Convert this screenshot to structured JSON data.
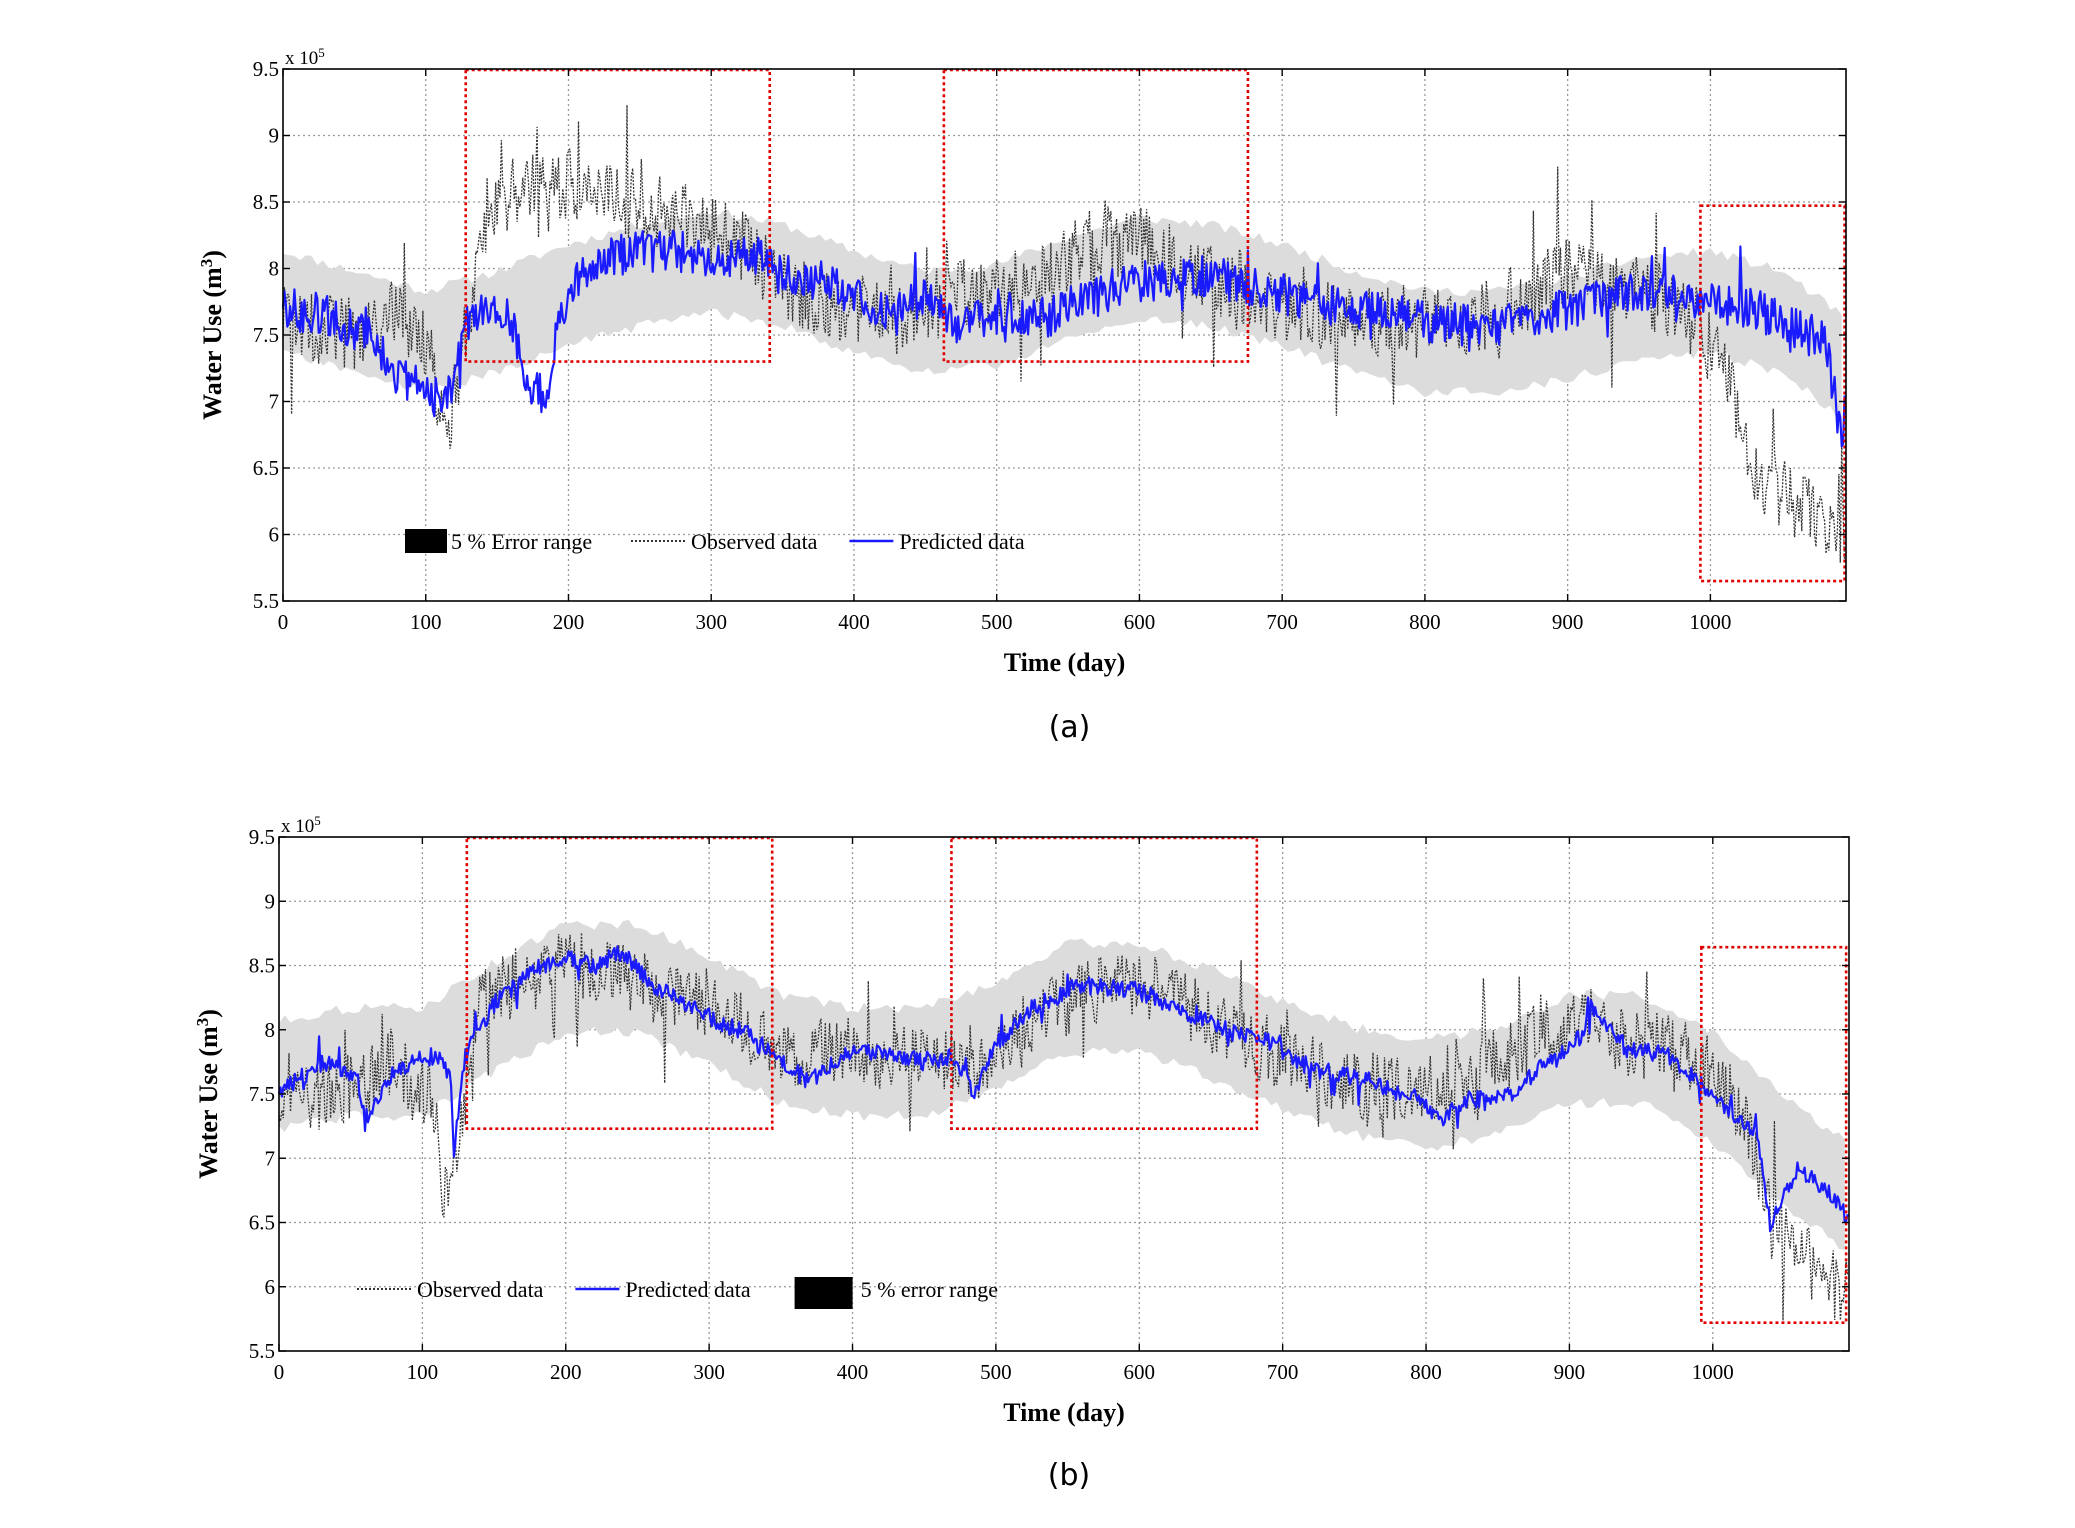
{
  "chart_data": [
    {
      "type": "line",
      "panel_label": "(a)",
      "xlabel": "Time (day)",
      "ylabel_main": "Water Use (m",
      "ylabel_sup": "3",
      "ylabel_close": ")",
      "y_multiplier": "x 10",
      "y_multiplier_exp": "5",
      "xlim": [
        0,
        1095
      ],
      "ylim": [
        5.5,
        9.5
      ],
      "xticks": [
        0,
        100,
        200,
        300,
        400,
        500,
        600,
        700,
        800,
        900,
        1000
      ],
      "yticks": [
        5.5,
        6,
        6.5,
        7,
        7.5,
        8,
        8.5,
        9,
        9.5
      ],
      "grid": true,
      "legend_items": [
        "5 % Error range",
        "Observed data",
        "Predicted data"
      ],
      "legend_order": [
        "band",
        "observed",
        "predicted"
      ],
      "band_color": "#dcdcdc",
      "observed_color": "#333333",
      "predicted_color": "#1a1aff",
      "highlight_color": "#e00000",
      "highlight_boxes": [
        {
          "x0": 128,
          "x1": 341,
          "y0": 7.3,
          "y1": 9.5
        },
        {
          "x0": 463,
          "x1": 676,
          "y0": 7.3,
          "y1": 9.5
        },
        {
          "x0": 993,
          "x1": 1094,
          "y0": 5.65,
          "y1": 8.48
        }
      ],
      "predicted_anchors": [
        [
          0,
          7.7
        ],
        [
          30,
          7.65
        ],
        [
          60,
          7.5
        ],
        [
          80,
          7.2
        ],
        [
          100,
          7.1
        ],
        [
          115,
          7.0
        ],
        [
          125,
          7.5
        ],
        [
          140,
          7.7
        ],
        [
          160,
          7.6
        ],
        [
          170,
          7.1
        ],
        [
          185,
          7.05
        ],
        [
          195,
          7.7
        ],
        [
          210,
          8.0
        ],
        [
          230,
          8.1
        ],
        [
          260,
          8.15
        ],
        [
          300,
          8.1
        ],
        [
          330,
          8.1
        ],
        [
          350,
          7.95
        ],
        [
          380,
          7.9
        ],
        [
          400,
          7.8
        ],
        [
          430,
          7.65
        ],
        [
          450,
          7.8
        ],
        [
          470,
          7.6
        ],
        [
          500,
          7.6
        ],
        [
          540,
          7.65
        ],
        [
          570,
          7.8
        ],
        [
          600,
          7.9
        ],
        [
          640,
          7.95
        ],
        [
          670,
          7.9
        ],
        [
          700,
          7.8
        ],
        [
          750,
          7.7
        ],
        [
          800,
          7.6
        ],
        [
          850,
          7.55
        ],
        [
          900,
          7.7
        ],
        [
          950,
          7.85
        ],
        [
          1000,
          7.75
        ],
        [
          1030,
          7.7
        ],
        [
          1060,
          7.55
        ],
        [
          1080,
          7.45
        ],
        [
          1094,
          6.7
        ]
      ],
      "observed_anchors": [
        [
          0,
          7.6
        ],
        [
          30,
          7.55
        ],
        [
          60,
          7.5
        ],
        [
          80,
          7.7
        ],
        [
          100,
          7.4
        ],
        [
          115,
          6.8
        ],
        [
          125,
          7.3
        ],
        [
          140,
          8.3
        ],
        [
          160,
          8.6
        ],
        [
          185,
          8.6
        ],
        [
          210,
          8.65
        ],
        [
          240,
          8.5
        ],
        [
          270,
          8.4
        ],
        [
          300,
          8.3
        ],
        [
          330,
          8.1
        ],
        [
          360,
          7.8
        ],
        [
          400,
          7.7
        ],
        [
          440,
          7.6
        ],
        [
          470,
          7.85
        ],
        [
          500,
          7.8
        ],
        [
          540,
          8.05
        ],
        [
          570,
          8.2
        ],
        [
          600,
          8.2
        ],
        [
          640,
          8.0
        ],
        [
          670,
          7.8
        ],
        [
          700,
          7.7
        ],
        [
          750,
          7.6
        ],
        [
          800,
          7.6
        ],
        [
          850,
          7.65
        ],
        [
          900,
          8.0
        ],
        [
          930,
          7.9
        ],
        [
          960,
          7.8
        ],
        [
          990,
          7.6
        ],
        [
          1010,
          7.3
        ],
        [
          1030,
          6.5
        ],
        [
          1050,
          6.3
        ],
        [
          1070,
          6.15
        ],
        [
          1094,
          5.9
        ]
      ],
      "band_center_anchors": [
        [
          0,
          7.75
        ],
        [
          50,
          7.6
        ],
        [
          100,
          7.45
        ],
        [
          150,
          7.6
        ],
        [
          200,
          7.8
        ],
        [
          250,
          7.95
        ],
        [
          300,
          8.05
        ],
        [
          350,
          7.95
        ],
        [
          400,
          7.75
        ],
        [
          450,
          7.6
        ],
        [
          500,
          7.65
        ],
        [
          550,
          7.85
        ],
        [
          600,
          8.0
        ],
        [
          650,
          7.95
        ],
        [
          700,
          7.8
        ],
        [
          750,
          7.6
        ],
        [
          800,
          7.45
        ],
        [
          850,
          7.45
        ],
        [
          900,
          7.55
        ],
        [
          950,
          7.7
        ],
        [
          1000,
          7.75
        ],
        [
          1050,
          7.6
        ],
        [
          1094,
          7.25
        ]
      ],
      "band_halfwidth": 0.38
    },
    {
      "type": "line",
      "panel_label": "(b)",
      "xlabel": "Time (day)",
      "ylabel_main": "Water Use (m",
      "ylabel_sup": "3",
      "ylabel_close": ")",
      "y_multiplier": "x 10",
      "y_multiplier_exp": "5",
      "xlim": [
        0,
        1095
      ],
      "ylim": [
        5.5,
        9.5
      ],
      "xticks": [
        0,
        100,
        200,
        300,
        400,
        500,
        600,
        700,
        800,
        900,
        1000
      ],
      "yticks": [
        5.5,
        6,
        6.5,
        7,
        7.5,
        8,
        8.5,
        9,
        9.5
      ],
      "grid": true,
      "legend_items": [
        "Observed data",
        "Predicted data",
        "5 % error range"
      ],
      "legend_order": [
        "observed",
        "predicted",
        "band"
      ],
      "band_color": "#dcdcdc",
      "observed_color": "#333333",
      "predicted_color": "#1a1aff",
      "highlight_color": "#e00000",
      "highlight_boxes": [
        {
          "x0": 131,
          "x1": 344,
          "y0": 7.23,
          "y1": 9.5
        },
        {
          "x0": 469,
          "x1": 682,
          "y0": 7.23,
          "y1": 9.5
        },
        {
          "x0": 992,
          "x1": 1093,
          "y0": 5.72,
          "y1": 8.65
        }
      ],
      "predicted_anchors": [
        [
          0,
          7.5
        ],
        [
          30,
          7.75
        ],
        [
          55,
          7.6
        ],
        [
          60,
          7.3
        ],
        [
          80,
          7.7
        ],
        [
          110,
          7.8
        ],
        [
          120,
          7.6
        ],
        [
          122,
          7.05
        ],
        [
          130,
          7.8
        ],
        [
          150,
          8.2
        ],
        [
          180,
          8.5
        ],
        [
          200,
          8.55
        ],
        [
          220,
          8.5
        ],
        [
          240,
          8.6
        ],
        [
          260,
          8.35
        ],
        [
          300,
          8.1
        ],
        [
          330,
          7.95
        ],
        [
          350,
          7.75
        ],
        [
          370,
          7.6
        ],
        [
          400,
          7.85
        ],
        [
          430,
          7.8
        ],
        [
          450,
          7.75
        ],
        [
          470,
          7.8
        ],
        [
          485,
          7.5
        ],
        [
          500,
          7.9
        ],
        [
          530,
          8.2
        ],
        [
          560,
          8.35
        ],
        [
          600,
          8.3
        ],
        [
          630,
          8.15
        ],
        [
          660,
          8.0
        ],
        [
          690,
          7.9
        ],
        [
          720,
          7.7
        ],
        [
          760,
          7.6
        ],
        [
          790,
          7.5
        ],
        [
          810,
          7.3
        ],
        [
          830,
          7.45
        ],
        [
          860,
          7.5
        ],
        [
          890,
          7.8
        ],
        [
          910,
          7.95
        ],
        [
          915,
          8.2
        ],
        [
          940,
          7.85
        ],
        [
          970,
          7.8
        ],
        [
          1000,
          7.5
        ],
        [
          1030,
          7.2
        ],
        [
          1040,
          6.5
        ],
        [
          1060,
          6.9
        ],
        [
          1080,
          6.75
        ],
        [
          1094,
          6.55
        ]
      ],
      "observed_anchors": [
        [
          0,
          7.45
        ],
        [
          30,
          7.5
        ],
        [
          60,
          7.6
        ],
        [
          80,
          7.75
        ],
        [
          110,
          7.4
        ],
        [
          115,
          6.7
        ],
        [
          125,
          7.2
        ],
        [
          140,
          8.2
        ],
        [
          170,
          8.4
        ],
        [
          200,
          8.5
        ],
        [
          230,
          8.45
        ],
        [
          260,
          8.3
        ],
        [
          300,
          8.2
        ],
        [
          340,
          7.9
        ],
        [
          370,
          7.8
        ],
        [
          400,
          7.9
        ],
        [
          430,
          7.75
        ],
        [
          460,
          7.8
        ],
        [
          490,
          7.7
        ],
        [
          520,
          8.0
        ],
        [
          560,
          8.3
        ],
        [
          600,
          8.35
        ],
        [
          640,
          8.15
        ],
        [
          680,
          7.9
        ],
        [
          720,
          7.7
        ],
        [
          760,
          7.55
        ],
        [
          800,
          7.55
        ],
        [
          840,
          7.7
        ],
        [
          880,
          7.95
        ],
        [
          910,
          8.1
        ],
        [
          940,
          7.9
        ],
        [
          970,
          7.85
        ],
        [
          1000,
          7.7
        ],
        [
          1020,
          7.4
        ],
        [
          1040,
          6.5
        ],
        [
          1060,
          6.25
        ],
        [
          1080,
          6.05
        ],
        [
          1094,
          5.95
        ]
      ],
      "band_center_anchors": [
        [
          0,
          7.65
        ],
        [
          50,
          7.75
        ],
        [
          100,
          7.75
        ],
        [
          150,
          8.1
        ],
        [
          200,
          8.4
        ],
        [
          250,
          8.4
        ],
        [
          300,
          8.15
        ],
        [
          350,
          7.85
        ],
        [
          400,
          7.75
        ],
        [
          450,
          7.75
        ],
        [
          500,
          7.95
        ],
        [
          550,
          8.25
        ],
        [
          600,
          8.25
        ],
        [
          650,
          8.05
        ],
        [
          700,
          7.8
        ],
        [
          750,
          7.6
        ],
        [
          800,
          7.5
        ],
        [
          850,
          7.6
        ],
        [
          900,
          7.85
        ],
        [
          950,
          7.85
        ],
        [
          1000,
          7.55
        ],
        [
          1050,
          7.05
        ],
        [
          1094,
          6.7
        ]
      ],
      "band_halfwidth": 0.42
    }
  ]
}
